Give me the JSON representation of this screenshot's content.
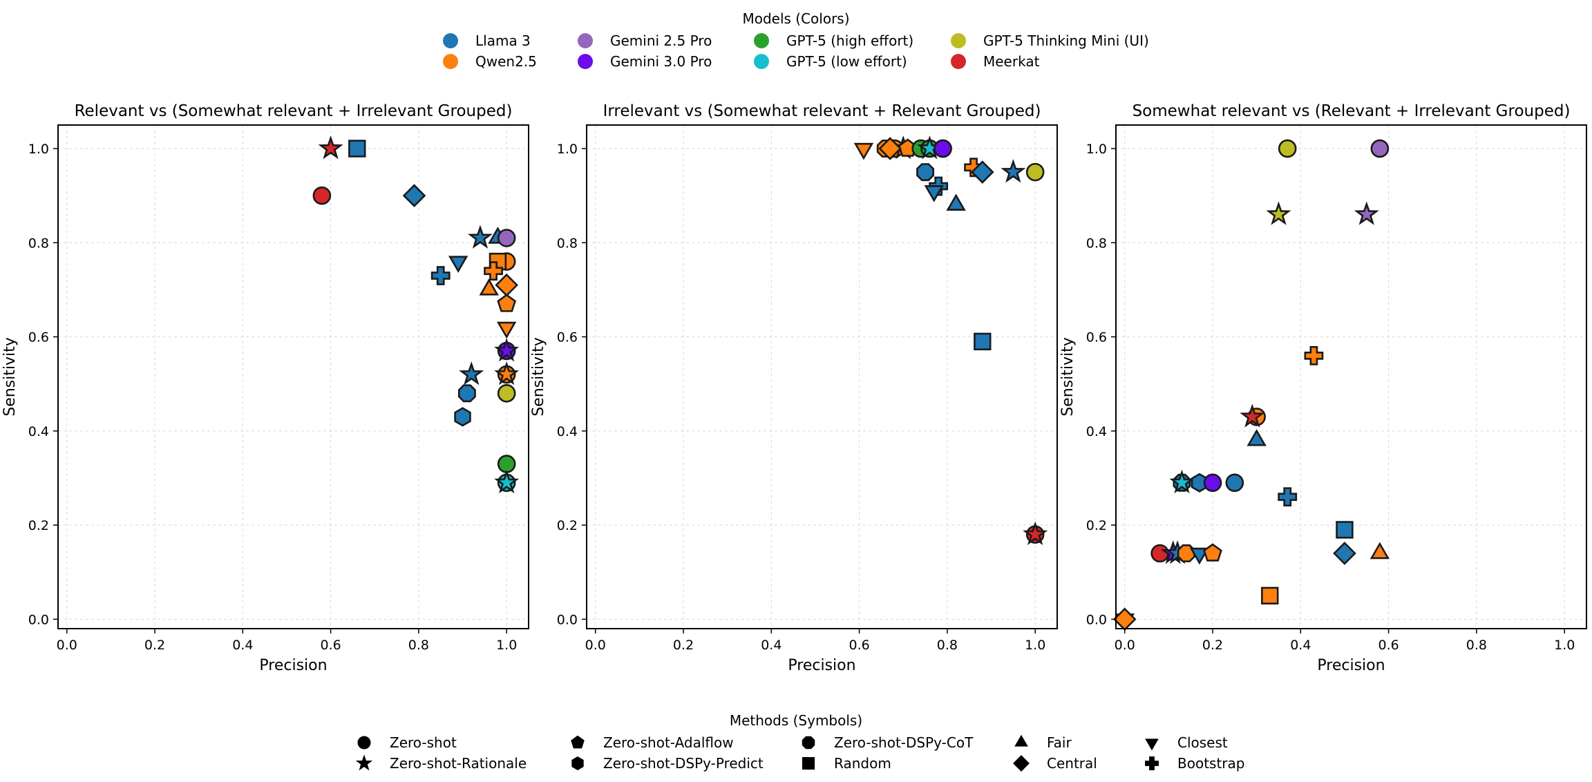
{
  "legend_models": {
    "title": "Models (Colors)",
    "items": [
      {
        "label": "Llama 3",
        "color": "#1f77b4"
      },
      {
        "label": "Qwen2.5",
        "color": "#ff7f0e"
      },
      {
        "label": "Gemini 2.5 Pro",
        "color": "#9467bd"
      },
      {
        "label": "Gemini 3.0 Pro",
        "color": "#6a0dea"
      },
      {
        "label": "GPT-5 (high effort)",
        "color": "#2ca02c"
      },
      {
        "label": "GPT-5 (low effort)",
        "color": "#17becf"
      },
      {
        "label": "GPT-5 Thinking Mini (UI)",
        "color": "#bcbd22"
      },
      {
        "label": "Meerkat",
        "color": "#d62728"
      }
    ]
  },
  "legend_methods": {
    "title": "Methods (Symbols)",
    "items": [
      {
        "label": "Zero-shot",
        "icon": "circle"
      },
      {
        "label": "Zero-shot-Rationale",
        "icon": "star"
      },
      {
        "label": "Zero-shot-Adalflow",
        "icon": "pentagon"
      },
      {
        "label": "Zero-shot-DSPy-Predict",
        "icon": "hexagon"
      },
      {
        "label": "Zero-shot-DSPy-CoT",
        "icon": "octagon"
      },
      {
        "label": "Random",
        "icon": "square"
      },
      {
        "label": "Fair",
        "icon": "triangle-up"
      },
      {
        "label": "Central",
        "icon": "diamond"
      },
      {
        "label": "Closest",
        "icon": "triangle-down"
      },
      {
        "label": "Bootstrap",
        "icon": "plus"
      }
    ]
  },
  "chart_data": [
    {
      "type": "scatter",
      "title": "Relevant vs (Somewhat relevant + Irrelevant Grouped)",
      "xlabel": "Precision",
      "ylabel": "Sensitivity",
      "xlim": [
        -0.02,
        1.05
      ],
      "ylim": [
        -0.02,
        1.05
      ],
      "xticks": [
        "0.0",
        "0.2",
        "0.4",
        "0.6",
        "0.8",
        "1.0"
      ],
      "yticks": [
        "0.0",
        "0.2",
        "0.4",
        "0.6",
        "0.8",
        "1.0"
      ],
      "grid": true,
      "points": [
        {
          "model": "Meerkat",
          "method": "Zero-shot",
          "x": 0.58,
          "y": 0.9
        },
        {
          "model": "Meerkat",
          "method": "Zero-shot-Rationale",
          "x": 0.6,
          "y": 1.0
        },
        {
          "model": "Llama 3",
          "method": "Random",
          "x": 0.66,
          "y": 1.0
        },
        {
          "model": "Llama 3",
          "method": "Central",
          "x": 0.79,
          "y": 0.9
        },
        {
          "model": "Llama 3",
          "method": "Zero-shot-Rationale",
          "x": 0.94,
          "y": 0.81
        },
        {
          "model": "Llama 3",
          "method": "Fair",
          "x": 0.98,
          "y": 0.81
        },
        {
          "model": "Gemini 2.5 Pro",
          "method": "Zero-shot",
          "x": 1.0,
          "y": 0.81
        },
        {
          "model": "Llama 3",
          "method": "Closest",
          "x": 0.89,
          "y": 0.76
        },
        {
          "model": "Llama 3",
          "method": "Bootstrap",
          "x": 0.85,
          "y": 0.73
        },
        {
          "model": "Qwen2.5",
          "method": "Zero-shot",
          "x": 1.0,
          "y": 0.76
        },
        {
          "model": "Qwen2.5",
          "method": "Random",
          "x": 0.98,
          "y": 0.76
        },
        {
          "model": "Qwen2.5",
          "method": "Bootstrap",
          "x": 0.97,
          "y": 0.74
        },
        {
          "model": "Qwen2.5",
          "method": "Fair",
          "x": 0.96,
          "y": 0.7
        },
        {
          "model": "Qwen2.5",
          "method": "Central",
          "x": 1.0,
          "y": 0.71
        },
        {
          "model": "Qwen2.5",
          "method": "Zero-shot-Adalflow",
          "x": 1.0,
          "y": 0.67
        },
        {
          "model": "Qwen2.5",
          "method": "Closest",
          "x": 1.0,
          "y": 0.62
        },
        {
          "model": "Gemini 3.0 Pro",
          "method": "Zero-shot",
          "x": 1.0,
          "y": 0.57
        },
        {
          "model": "Gemini 3.0 Pro",
          "method": "Zero-shot-Rationale",
          "x": 1.0,
          "y": 0.57
        },
        {
          "model": "Llama 3",
          "method": "Zero-shot-Rationale",
          "x": 0.92,
          "y": 0.52
        },
        {
          "model": "Qwen2.5",
          "method": "Zero-shot",
          "x": 1.0,
          "y": 0.52
        },
        {
          "model": "Qwen2.5",
          "method": "Zero-shot-Rationale",
          "x": 1.0,
          "y": 0.52
        },
        {
          "model": "Llama 3",
          "method": "Zero-shot-DSPy-CoT",
          "x": 0.91,
          "y": 0.48
        },
        {
          "model": "GPT-5 Thinking Mini (UI)",
          "method": "Zero-shot",
          "x": 1.0,
          "y": 0.48
        },
        {
          "model": "Llama 3",
          "method": "Zero-shot-DSPy-Predict",
          "x": 0.9,
          "y": 0.43
        },
        {
          "model": "GPT-5 (high effort)",
          "method": "Zero-shot",
          "x": 1.0,
          "y": 0.33
        },
        {
          "model": "GPT-5 (low effort)",
          "method": "Zero-shot",
          "x": 1.0,
          "y": 0.29
        },
        {
          "model": "GPT-5 (low effort)",
          "method": "Zero-shot-Rationale",
          "x": 1.0,
          "y": 0.29
        }
      ]
    },
    {
      "type": "scatter",
      "title": "Irrelevant vs (Somewhat relevant + Relevant Grouped)",
      "xlabel": "Precision",
      "ylabel": "Sensitivity",
      "xlim": [
        -0.02,
        1.05
      ],
      "ylim": [
        -0.02,
        1.05
      ],
      "xticks": [
        "0.0",
        "0.2",
        "0.4",
        "0.6",
        "0.8",
        "1.0"
      ],
      "yticks": [
        "0.0",
        "0.2",
        "0.4",
        "0.6",
        "0.8",
        "1.0"
      ],
      "grid": true,
      "points": [
        {
          "model": "Qwen2.5",
          "method": "Closest",
          "x": 0.61,
          "y": 1.0
        },
        {
          "model": "Qwen2.5",
          "method": "Zero-shot-DSPy-CoT",
          "x": 0.66,
          "y": 1.0
        },
        {
          "model": "Qwen2.5",
          "method": "Zero-shot",
          "x": 0.68,
          "y": 1.0
        },
        {
          "model": "Qwen2.5",
          "method": "Zero-shot-Rationale",
          "x": 0.7,
          "y": 1.0
        },
        {
          "model": "Qwen2.5",
          "method": "Zero-shot-Adalflow",
          "x": 0.71,
          "y": 1.0
        },
        {
          "model": "Qwen2.5",
          "method": "Central",
          "x": 0.67,
          "y": 1.0
        },
        {
          "model": "GPT-5 (high effort)",
          "method": "Zero-shot",
          "x": 0.74,
          "y": 1.0
        },
        {
          "model": "GPT-5 (high effort)",
          "method": "Zero-shot",
          "x": 0.76,
          "y": 1.0
        },
        {
          "model": "GPT-5 (low effort)",
          "method": "Zero-shot-Rationale",
          "x": 0.76,
          "y": 1.0
        },
        {
          "model": "Gemini 2.5 Pro",
          "method": "Zero-shot",
          "x": 0.79,
          "y": 1.0
        },
        {
          "model": "Gemini 3.0 Pro",
          "method": "Zero-shot",
          "x": 0.79,
          "y": 1.0
        },
        {
          "model": "Llama 3",
          "method": "Zero-shot-DSPy-CoT",
          "x": 0.75,
          "y": 0.95
        },
        {
          "model": "Llama 3",
          "method": "Bootstrap",
          "x": 0.78,
          "y": 0.92
        },
        {
          "model": "Llama 3",
          "method": "Closest",
          "x": 0.77,
          "y": 0.91
        },
        {
          "model": "Llama 3",
          "method": "Fair",
          "x": 0.82,
          "y": 0.88
        },
        {
          "model": "Qwen2.5",
          "method": "Bootstrap",
          "x": 0.86,
          "y": 0.96
        },
        {
          "model": "Llama 3",
          "method": "Central",
          "x": 0.88,
          "y": 0.95
        },
        {
          "model": "Llama 3",
          "method": "Zero-shot-Rationale",
          "x": 0.95,
          "y": 0.95
        },
        {
          "model": "GPT-5 Thinking Mini (UI)",
          "method": "Zero-shot",
          "x": 1.0,
          "y": 0.95
        },
        {
          "model": "Llama 3",
          "method": "Random",
          "x": 0.88,
          "y": 0.59
        },
        {
          "model": "Meerkat",
          "method": "Zero-shot",
          "x": 1.0,
          "y": 0.18
        },
        {
          "model": "Meerkat",
          "method": "Zero-shot-Rationale",
          "x": 1.0,
          "y": 0.18
        }
      ]
    },
    {
      "type": "scatter",
      "title": "Somewhat relevant vs (Relevant + Irrelevant Grouped)",
      "xlabel": "Precision",
      "ylabel": "Sensitivity",
      "xlim": [
        -0.02,
        1.05
      ],
      "ylim": [
        -0.02,
        1.05
      ],
      "xticks": [
        "0.0",
        "0.2",
        "0.4",
        "0.6",
        "0.8",
        "1.0"
      ],
      "yticks": [
        "0.0",
        "0.2",
        "0.4",
        "0.6",
        "0.8",
        "1.0"
      ],
      "grid": true,
      "points": [
        {
          "model": "GPT-5 Thinking Mini (UI)",
          "method": "Zero-shot",
          "x": 0.37,
          "y": 1.0
        },
        {
          "model": "Gemini 2.5 Pro",
          "method": "Zero-shot",
          "x": 0.58,
          "y": 1.0
        },
        {
          "model": "GPT-5 Thinking Mini (UI)",
          "method": "Zero-shot-Rationale",
          "x": 0.35,
          "y": 0.86
        },
        {
          "model": "Gemini 2.5 Pro",
          "method": "Zero-shot-Rationale",
          "x": 0.55,
          "y": 0.86
        },
        {
          "model": "Qwen2.5",
          "method": "Bootstrap",
          "x": 0.43,
          "y": 0.56
        },
        {
          "model": "Qwen2.5",
          "method": "Zero-shot",
          "x": 0.3,
          "y": 0.43
        },
        {
          "model": "Meerkat",
          "method": "Zero-shot-Rationale",
          "x": 0.29,
          "y": 0.43
        },
        {
          "model": "Llama 3",
          "method": "Fair",
          "x": 0.3,
          "y": 0.38
        },
        {
          "model": "Llama 3",
          "method": "Zero-shot-DSPy-CoT",
          "x": 0.13,
          "y": 0.29
        },
        {
          "model": "GPT-5 (low effort)",
          "method": "Zero-shot-Rationale",
          "x": 0.13,
          "y": 0.29
        },
        {
          "model": "Llama 3",
          "method": "Zero-shot-DSPy-Predict",
          "x": 0.17,
          "y": 0.29
        },
        {
          "model": "Gemini 3.0 Pro",
          "method": "Zero-shot",
          "x": 0.2,
          "y": 0.29
        },
        {
          "model": "Llama 3",
          "method": "Zero-shot",
          "x": 0.25,
          "y": 0.29
        },
        {
          "model": "Llama 3",
          "method": "Bootstrap",
          "x": 0.37,
          "y": 0.26
        },
        {
          "model": "Llama 3",
          "method": "Random",
          "x": 0.5,
          "y": 0.19
        },
        {
          "model": "Llama 3",
          "method": "Central",
          "x": 0.5,
          "y": 0.14
        },
        {
          "model": "Qwen2.5",
          "method": "Fair",
          "x": 0.58,
          "y": 0.14
        },
        {
          "model": "Meerkat",
          "method": "Zero-shot",
          "x": 0.08,
          "y": 0.14
        },
        {
          "model": "Gemini 3.0 Pro",
          "method": "Zero-shot-Rationale",
          "x": 0.11,
          "y": 0.14
        },
        {
          "model": "Llama 3",
          "method": "Zero-shot-Rationale",
          "x": 0.12,
          "y": 0.14
        },
        {
          "model": "Qwen2.5",
          "method": "Zero-shot-DSPy-CoT",
          "x": 0.14,
          "y": 0.14
        },
        {
          "model": "Llama 3",
          "method": "Closest",
          "x": 0.17,
          "y": 0.14
        },
        {
          "model": "Qwen2.5",
          "method": "Zero-shot-Adalflow",
          "x": 0.2,
          "y": 0.14
        },
        {
          "model": "Qwen2.5",
          "method": "Random",
          "x": 0.33,
          "y": 0.05
        },
        {
          "model": "Qwen2.5",
          "method": "Closest",
          "x": 0.0,
          "y": 0.0
        },
        {
          "model": "Qwen2.5",
          "method": "Central",
          "x": 0.0,
          "y": 0.0
        }
      ]
    }
  ]
}
